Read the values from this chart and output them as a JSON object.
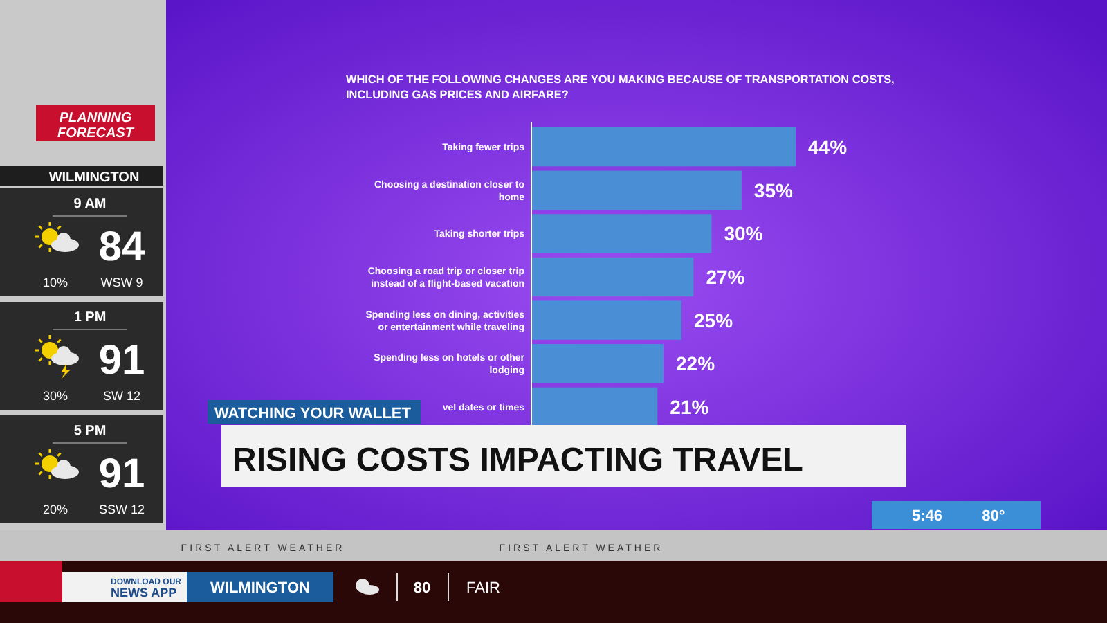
{
  "chart_data": {
    "type": "bar",
    "orientation": "horizontal",
    "title": "WHICH OF THE FOLLOWING CHANGES ARE YOU MAKING BECAUSE OF TRANSPORTATION COSTS, INCLUDING GAS PRICES AND AIRFARE?",
    "categories": [
      "Taking fewer trips",
      "Choosing a destination closer to home",
      "Taking shorter trips",
      "Choosing a road trip or closer trip instead of a flight-based vacation",
      "Spending less on dining, activities or entertainment while traveling",
      "Spending less on hotels or other lodging",
      "vel dates or times"
    ],
    "values": [
      44,
      35,
      30,
      27,
      25,
      22,
      21
    ],
    "color": "#4a8fd6",
    "value_labels": [
      "44%",
      "35%",
      "30%",
      "27%",
      "25%",
      "22%",
      "21%"
    ],
    "annotations": [
      "WATCHING YOUR WALLET",
      "RISING COSTS IMPACTING TRAVEL",
      "PLANNING FORECAST",
      "WILMINGTON",
      "9 AM",
      "84",
      "10%",
      "WSW 9",
      "1 PM",
      "91",
      "30%",
      "SW 12",
      "5 PM",
      "91",
      "20%",
      "SSW 12",
      "FIRST ALERT WEATHER",
      "5:46",
      "80°",
      "DOWNLOAD OUR NEWS APP",
      "WILMINGTON",
      "80",
      "FAIR"
    ]
  }
}
